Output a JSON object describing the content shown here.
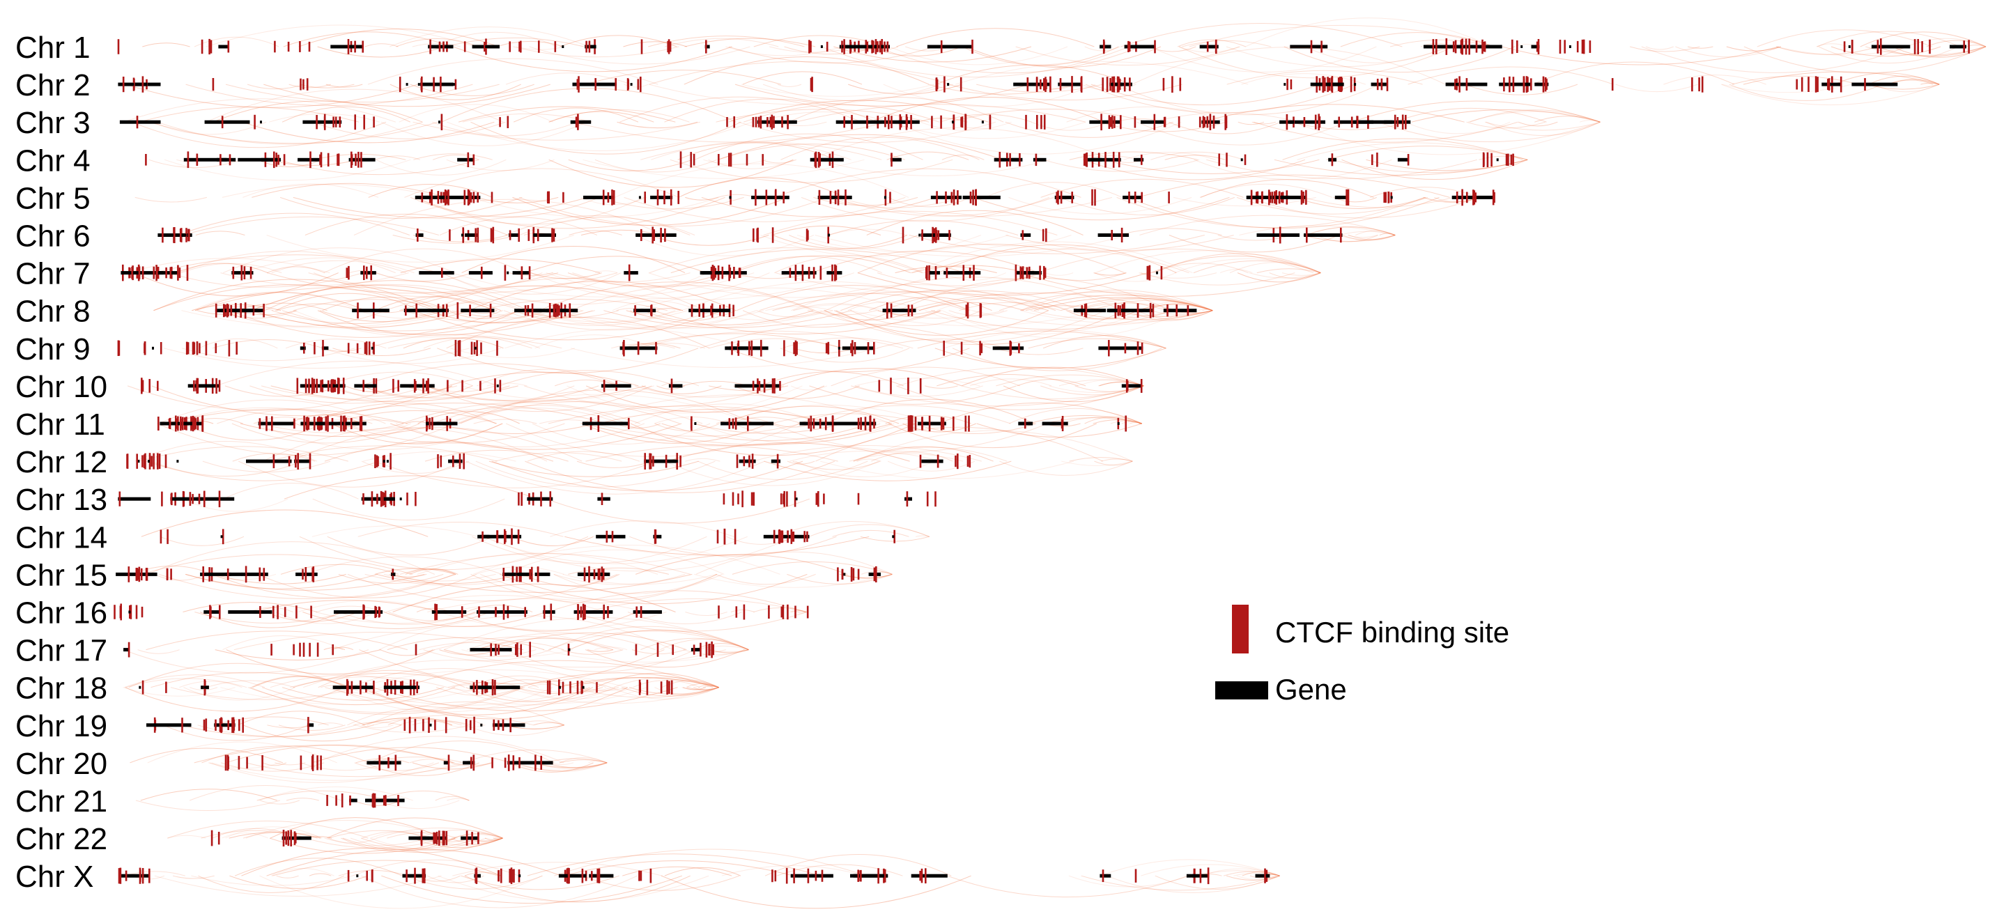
{
  "figure": {
    "type": "genome-track-map",
    "description_none": "",
    "colors": {
      "ctcf": "#b01818",
      "gene": "#000000",
      "loop": "#f07040",
      "label": "#000000"
    }
  },
  "chromosomes": [
    {
      "label": "Chr 1",
      "length_frac": 1.0,
      "loop_density": 0.35
    },
    {
      "label": "Chr 2",
      "length_frac": 0.975,
      "loop_density": 0.25
    },
    {
      "label": "Chr 3",
      "length_frac": 0.793,
      "loop_density": 0.4
    },
    {
      "label": "Chr 4",
      "length_frac": 0.754,
      "loop_density": 0.3
    },
    {
      "label": "Chr 5",
      "length_frac": 0.728,
      "loop_density": 0.3
    },
    {
      "label": "Chr 6",
      "length_frac": 0.683,
      "loop_density": 0.3
    },
    {
      "label": "Chr 7",
      "length_frac": 0.643,
      "loop_density": 0.5
    },
    {
      "label": "Chr 8",
      "length_frac": 0.585,
      "loop_density": 1.0
    },
    {
      "label": "Chr 9",
      "length_frac": 0.56,
      "loop_density": 0.3
    },
    {
      "label": "Chr 10",
      "length_frac": 0.548,
      "loop_density": 0.5
    },
    {
      "label": "Chr 11",
      "length_frac": 0.547,
      "loop_density": 0.7
    },
    {
      "label": "Chr 12",
      "length_frac": 0.542,
      "loop_density": 0.4
    },
    {
      "label": "Chr 13",
      "length_frac": 0.462,
      "loop_density": 0.05
    },
    {
      "label": "Chr 14",
      "length_frac": 0.433,
      "loop_density": 0.2
    },
    {
      "label": "Chr 15",
      "length_frac": 0.413,
      "loop_density": 0.5
    },
    {
      "label": "Chr 16",
      "length_frac": 0.367,
      "loop_density": 0.4
    },
    {
      "label": "Chr 17",
      "length_frac": 0.336,
      "loop_density": 0.6
    },
    {
      "label": "Chr 18",
      "length_frac": 0.32,
      "loop_density": 1.0
    },
    {
      "label": "Chr 19",
      "length_frac": 0.237,
      "loop_density": 0.5
    },
    {
      "label": "Chr 20",
      "length_frac": 0.26,
      "loop_density": 0.6
    },
    {
      "label": "Chr 21",
      "length_frac": 0.186,
      "loop_density": 0.3
    },
    {
      "label": "Chr 22",
      "length_frac": 0.204,
      "loop_density": 0.9
    },
    {
      "label": "Chr X",
      "length_frac": 0.621,
      "loop_density": 0.4
    }
  ],
  "legend": {
    "ctcf_label": "CTCF binding site",
    "gene_label": "Gene"
  }
}
